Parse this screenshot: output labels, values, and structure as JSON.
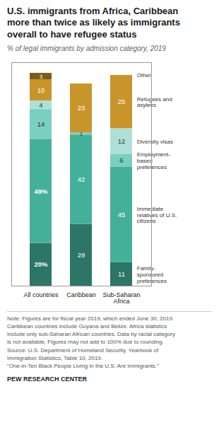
{
  "chart_data": {
    "type": "bar",
    "stacked": true,
    "data_labels": true,
    "tick_labels": "x",
    "title": "U.S. immigrants from Africa, Caribbean\nmore than twice as likely as immigrants\noverall to have refugee status",
    "subtitle": "% of legal immigrants by admission category, 2019",
    "categories": [
      "All countries",
      "Caribbean",
      "Sub-Saharan\nAfrica"
    ],
    "series": [
      {
        "name": "Family-\nsponsored\npreferences",
        "color": "#2d7566",
        "values": [
          20,
          29,
          11
        ],
        "value_labels": [
          "20%",
          "29",
          "11"
        ]
      },
      {
        "name": "Immediate\nrelatives of U.S.\ncitizens",
        "color": "#45b09a",
        "values": [
          49,
          42,
          45
        ],
        "value_labels": [
          "49%",
          "42",
          "45"
        ]
      },
      {
        "name": "Employment-\nbased\npreferences",
        "color": "#79cfc0",
        "values": [
          14,
          1,
          6
        ],
        "value_labels": [
          "14",
          "1",
          "6"
        ]
      },
      {
        "name": "Diversity visas",
        "color": "#aee0d8",
        "values": [
          4,
          0,
          12
        ],
        "value_labels": [
          "4",
          null,
          "12"
        ]
      },
      {
        "name": "Refugees and\nasylees",
        "color": "#c9952a",
        "values": [
          10,
          23,
          25
        ],
        "value_labels": [
          "10",
          "23",
          "25"
        ]
      },
      {
        "name": "Other",
        "color": "#7a5c1e",
        "values": [
          3,
          0,
          0
        ],
        "value_labels": [
          "3",
          null,
          null
        ]
      }
    ],
    "ylim": [
      0,
      105
    ],
    "yticks": [],
    "annotations": [
      "Note: Figures are for fiscal year 2019, which ended June 30, 2019.\nCaribbean countries include Guyana and Belize. Africa statistics\ninclude only sub-Saharan African countries. Data by racial category\nis not available. Figures may not add to 100% due to rounding.\nSource: U.S. Department of Homeland Security, Yearbook of\nImmigration Statistics, Table 10, 2019.\n“One-in-Ten Black People Living in the U.S. Are Immigrants.”",
      "PEW RESEARCH CENTER"
    ]
  }
}
